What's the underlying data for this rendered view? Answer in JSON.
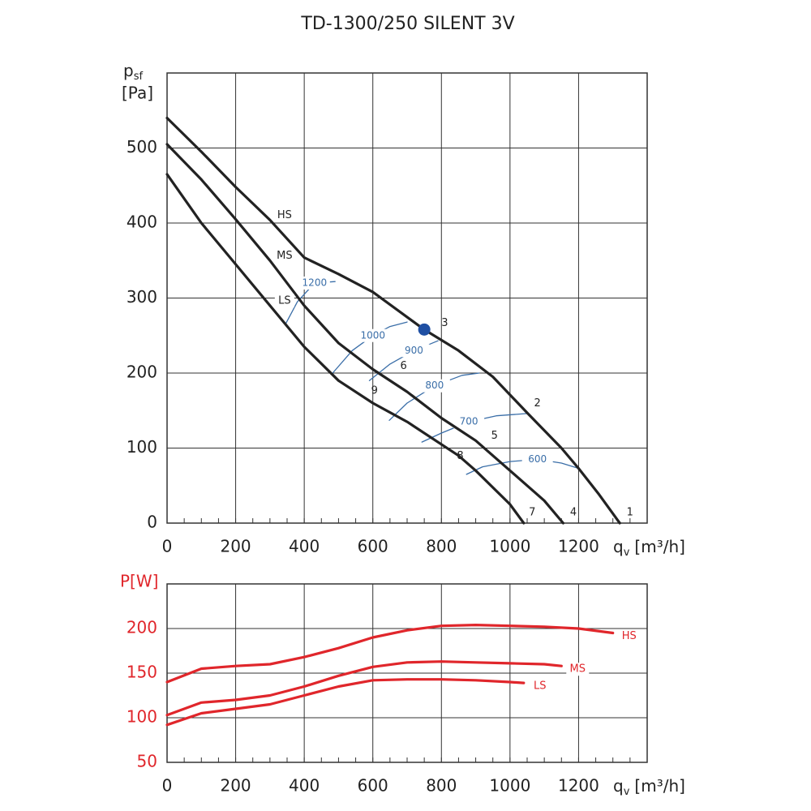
{
  "chart_data": [
    {
      "type": "line",
      "title": "TD-1300/250 SILENT 3V",
      "y_label": "p",
      "y_label_sub": "sf",
      "y_unit": "[Pa]",
      "x_label": "q",
      "x_label_sub": "v",
      "x_unit": "[m³/h]",
      "xlim": [
        0,
        1400
      ],
      "xticks": [
        0,
        200,
        400,
        600,
        800,
        1000,
        1200
      ],
      "ylim": [
        0,
        600
      ],
      "yticks": [
        0,
        100,
        200,
        300,
        400,
        500
      ],
      "grid": true,
      "series": [
        {
          "name": "HS",
          "color": "#222222",
          "x": [
            0,
            100,
            200,
            300,
            400,
            500,
            600,
            750,
            850,
            950,
            1050,
            1150,
            1200,
            1260,
            1320
          ],
          "values": [
            540,
            495,
            448,
            404,
            354,
            332,
            308,
            258,
            230,
            195,
            147,
            100,
            73,
            38,
            0
          ]
        },
        {
          "name": "MS",
          "color": "#222222",
          "x": [
            0,
            100,
            200,
            300,
            400,
            500,
            600,
            700,
            800,
            900,
            1000,
            1100,
            1155
          ],
          "values": [
            505,
            458,
            405,
            350,
            290,
            240,
            205,
            175,
            140,
            110,
            70,
            30,
            0
          ]
        },
        {
          "name": "LS",
          "color": "#222222",
          "x": [
            0,
            100,
            200,
            300,
            400,
            500,
            600,
            700,
            800,
            850,
            900,
            1000,
            1040
          ],
          "values": [
            465,
            400,
            345,
            290,
            235,
            190,
            160,
            135,
            105,
            90,
            70,
            25,
            0
          ]
        }
      ],
      "iso_lines": [
        {
          "name": "1200",
          "color": "#3a6ea8",
          "x": [
            345,
            380,
            430,
            490
          ],
          "values": [
            265,
            295,
            320,
            322
          ]
        },
        {
          "name": "1000",
          "color": "#3a6ea8",
          "x": [
            483,
            540,
            600,
            650,
            700
          ],
          "values": [
            200,
            230,
            250,
            262,
            268
          ]
        },
        {
          "name": "900",
          "color": "#3a6ea8",
          "x": [
            590,
            650,
            720,
            790
          ],
          "values": [
            190,
            212,
            230,
            243
          ]
        },
        {
          "name": "800",
          "color": "#3a6ea8",
          "x": [
            648,
            700,
            780,
            860,
            910
          ],
          "values": [
            137,
            160,
            183,
            197,
            200
          ]
        },
        {
          "name": "700",
          "color": "#3a6ea8",
          "x": [
            743,
            800,
            880,
            960,
            1050
          ],
          "values": [
            108,
            120,
            135,
            143,
            146
          ]
        },
        {
          "name": "600",
          "color": "#3a6ea8",
          "x": [
            873,
            920,
            1000,
            1080,
            1150,
            1200
          ],
          "values": [
            65,
            75,
            82,
            85,
            80,
            73
          ]
        }
      ],
      "annotations": [
        {
          "text": "1",
          "x": 1340,
          "y": 10
        },
        {
          "text": "2",
          "x": 1070,
          "y": 155
        },
        {
          "text": "3",
          "x": 800,
          "y": 262
        },
        {
          "text": "4",
          "x": 1175,
          "y": 10
        },
        {
          "text": "5",
          "x": 945,
          "y": 112
        },
        {
          "text": "6",
          "x": 680,
          "y": 205
        },
        {
          "text": "7",
          "x": 1055,
          "y": 10
        },
        {
          "text": "8",
          "x": 845,
          "y": 85
        },
        {
          "text": "9",
          "x": 595,
          "y": 172
        }
      ],
      "operating_point": {
        "x": 750,
        "y": 258,
        "color": "#1f4fa3"
      }
    },
    {
      "type": "line",
      "y_label": "P[W]",
      "y_label_color": "#e0262b",
      "x_label": "q",
      "x_label_sub": "v",
      "x_unit": "[m³/h]",
      "xlim": [
        0,
        1400
      ],
      "xticks": [
        0,
        200,
        400,
        600,
        800,
        1000,
        1200
      ],
      "ylim": [
        50,
        250
      ],
      "yticks": [
        50,
        100,
        150,
        200
      ],
      "grid": true,
      "tick_color": "#e0262b",
      "series": [
        {
          "name": "HS",
          "color": "#e0262b",
          "x": [
            0,
            100,
            200,
            300,
            400,
            500,
            600,
            700,
            800,
            900,
            1000,
            1100,
            1200,
            1300
          ],
          "values": [
            140,
            155,
            158,
            160,
            168,
            178,
            190,
            198,
            203,
            204,
            203,
            202,
            200,
            195
          ]
        },
        {
          "name": "MS",
          "color": "#e0262b",
          "x": [
            0,
            100,
            200,
            300,
            400,
            500,
            600,
            700,
            800,
            900,
            1000,
            1100,
            1150
          ],
          "values": [
            103,
            117,
            120,
            125,
            135,
            147,
            157,
            162,
            163,
            162,
            161,
            160,
            158
          ]
        },
        {
          "name": "LS",
          "color": "#e0262b",
          "x": [
            0,
            100,
            200,
            300,
            400,
            500,
            600,
            700,
            800,
            900,
            1000,
            1040
          ],
          "values": [
            92,
            105,
            110,
            115,
            125,
            135,
            142,
            143,
            143,
            142,
            140,
            139
          ]
        }
      ]
    }
  ]
}
